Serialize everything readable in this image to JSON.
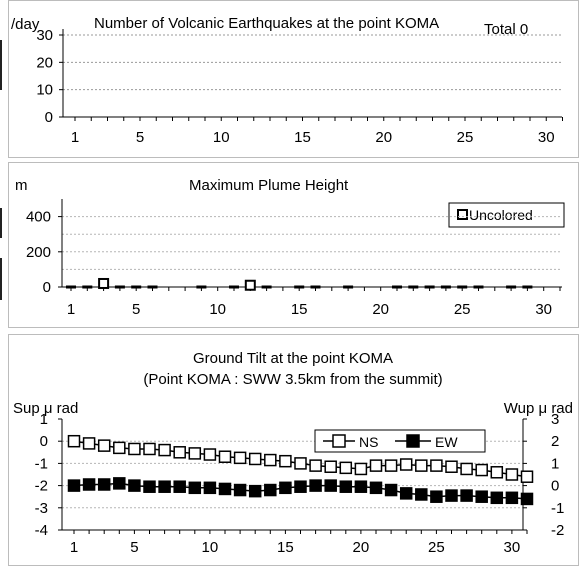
{
  "chart_data": [
    {
      "type": "bar",
      "title": "Number of Volcanic Earthquakes at the point KOMA",
      "ylabel": "/day",
      "total_label": "Total 0",
      "x": [
        1,
        2,
        3,
        4,
        5,
        6,
        7,
        8,
        9,
        10,
        11,
        12,
        13,
        14,
        15,
        16,
        17,
        18,
        19,
        20,
        21,
        22,
        23,
        24,
        25,
        26,
        27,
        28,
        29,
        30,
        31
      ],
      "values": [
        0,
        0,
        0,
        0,
        0,
        0,
        0,
        0,
        0,
        0,
        0,
        0,
        0,
        0,
        0,
        0,
        0,
        0,
        0,
        0,
        0,
        0,
        0,
        0,
        0,
        0,
        0,
        0,
        0,
        0,
        0
      ],
      "ylim": [
        0,
        30
      ],
      "yticks": [
        "0",
        "10",
        "20",
        "30"
      ],
      "xticks": [
        "1",
        "5",
        "10",
        "15",
        "20",
        "25",
        "30"
      ],
      "grid": true
    },
    {
      "type": "scatter",
      "title": "Maximum Plume Height",
      "ylabel": "m",
      "legend": "Uncolored",
      "legend_position": "top-right",
      "series": [
        {
          "name": "Uncolored",
          "x": [
            1,
            2,
            3,
            4,
            5,
            6,
            9,
            11,
            12,
            13,
            15,
            16,
            18,
            21,
            22,
            23,
            24,
            25,
            26,
            28,
            29
          ],
          "values": [
            0,
            0,
            20,
            0,
            0,
            0,
            0,
            0,
            10,
            0,
            0,
            0,
            0,
            0,
            0,
            0,
            0,
            0,
            0,
            0,
            0
          ]
        }
      ],
      "ylim": [
        0,
        500
      ],
      "yticks": [
        "0",
        "200",
        "400"
      ],
      "xticks": [
        "1",
        "5",
        "10",
        "15",
        "20",
        "25",
        "30"
      ],
      "grid": true
    },
    {
      "type": "line",
      "title": "Ground Tilt at the point KOMA",
      "subtitle": "(Point KOMA : SWW 3.5km from the summit)",
      "ylabel_left": "Sup μ rad",
      "ylabel_right": "Wup μ rad",
      "legend_position": "top-right",
      "x": [
        1,
        2,
        3,
        4,
        5,
        6,
        7,
        8,
        9,
        10,
        11,
        12,
        13,
        14,
        15,
        16,
        17,
        18,
        19,
        20,
        21,
        22,
        23,
        24,
        25,
        26,
        27,
        28,
        29,
        30,
        31
      ],
      "series": [
        {
          "name": "NS",
          "axis": "left",
          "marker": "open-square",
          "values": [
            0,
            -0.1,
            -0.2,
            -0.3,
            -0.35,
            -0.35,
            -0.4,
            -0.5,
            -0.55,
            -0.6,
            -0.7,
            -0.75,
            -0.8,
            -0.85,
            -0.9,
            -1.0,
            -1.1,
            -1.15,
            -1.2,
            -1.25,
            -1.1,
            -1.1,
            -1.05,
            -1.1,
            -1.1,
            -1.15,
            -1.25,
            -1.3,
            -1.4,
            -1.5,
            -1.6
          ]
        },
        {
          "name": "EW",
          "axis": "right",
          "marker": "filled-square",
          "values": [
            0,
            0.05,
            0.05,
            0.1,
            0,
            -0.05,
            -0.05,
            -0.05,
            -0.1,
            -0.1,
            -0.15,
            -0.2,
            -0.25,
            -0.2,
            -0.1,
            -0.05,
            0,
            0,
            -0.05,
            -0.05,
            -0.1,
            -0.2,
            -0.35,
            -0.4,
            -0.5,
            -0.45,
            -0.45,
            -0.5,
            -0.55,
            -0.55,
            -0.6
          ]
        }
      ],
      "ylim_left": [
        -4,
        1
      ],
      "ylim_right": [
        -2,
        3
      ],
      "yticks_left": [
        "1",
        "0",
        "-1",
        "-2",
        "-3",
        "-4"
      ],
      "yticks_right": [
        "3",
        "2",
        "1",
        "0",
        "-1",
        "-2"
      ],
      "xticks": [
        "1",
        "5",
        "10",
        "15",
        "20",
        "25",
        "30"
      ],
      "grid": true
    }
  ]
}
